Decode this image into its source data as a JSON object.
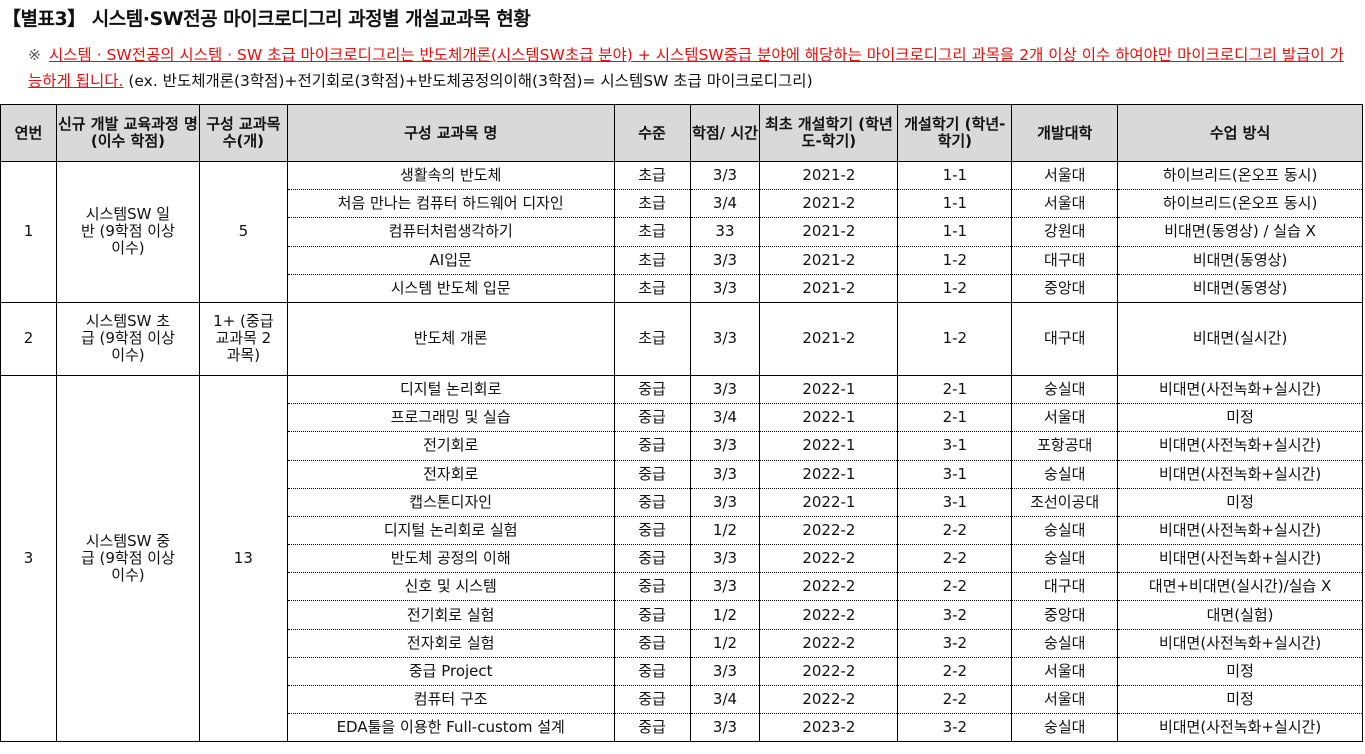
{
  "title": "【별표3】 시스템·SW전공 마이크로디그리 과정별 개설교과목 현황",
  "note": {
    "mark": "※",
    "red": "시스템 · SW전공의 시스템 · SW 초급 마이크로디그리는 반도체개론(시스템SW초급 분야) + 시스템SW중급 분야에 해당하는 마이크로디그리 과목을 2개 이상 이수 하여야만 마이크로디그리 발급이 가능하게 됩니다.",
    "black": " (ex. 반도체개론(3학점)+전기회로(3학점)+반도체공정의이해(3학점)= 시스템SW 초급 마이크로디그리)"
  },
  "headers": [
    "연번",
    "신규 개발 교육과정 명 (이수 학점)",
    "구성 교과목 수(개)",
    "구성 교과목 명",
    "수준",
    "학점/ 시간",
    "최초 개설학기 (학년도-학기)",
    "개설학기 (학년-학기)",
    "개발대학",
    "수업 방식"
  ],
  "groups": [
    {
      "no": "1",
      "name": "시스템SW 일반 (9학점 이상 이수)",
      "count": "5",
      "rows": [
        [
          "생활속의 반도체",
          "초급",
          "3/3",
          "2021-2",
          "1-1",
          "서울대",
          "하이브리드(온오프 동시)"
        ],
        [
          "처음 만나는 컴퓨터 하드웨어 디자인",
          "초급",
          "3/4",
          "2021-2",
          "1-1",
          "서울대",
          "하이브리드(온오프 동시)"
        ],
        [
          "컴퓨터처럼생각하기",
          "초급",
          "33",
          "2021-2",
          "1-1",
          "강원대",
          "비대면(동영상) / 실습 X"
        ],
        [
          "AI입문",
          "초급",
          "3/3",
          "2021-2",
          "1-2",
          "대구대",
          "비대면(동영상)"
        ],
        [
          "시스템 반도체 입문",
          "초급",
          "3/3",
          "2021-2",
          "1-2",
          "중앙대",
          "비대면(동영상)"
        ]
      ]
    },
    {
      "no": "2",
      "name": "시스템SW 초급 (9학점 이상 이수)",
      "count": "1+ (중급교과목 2과목)",
      "rows": [
        [
          "반도체 개론",
          "초급",
          "3/3",
          "2021-2",
          "1-2",
          "대구대",
          "비대면(실시간)"
        ]
      ]
    },
    {
      "no": "3",
      "name": "시스템SW 중급 (9학점 이상 이수)",
      "count": "13",
      "rows": [
        [
          "디지털 논리회로",
          "중급",
          "3/3",
          "2022-1",
          "2-1",
          "숭실대",
          "비대면(사전녹화+실시간)"
        ],
        [
          "프로그래밍 및 실습",
          "중급",
          "3/4",
          "2022-1",
          "2-1",
          "서울대",
          "미정"
        ],
        [
          "전기회로",
          "중급",
          "3/3",
          "2022-1",
          "3-1",
          "포항공대",
          "비대면(사전녹화+실시간)"
        ],
        [
          "전자회로",
          "중급",
          "3/3",
          "2022-1",
          "3-1",
          "숭실대",
          "비대면(사전녹화+실시간)"
        ],
        [
          "캡스톤디자인",
          "중급",
          "3/3",
          "2022-1",
          "3-1",
          "조선이공대",
          "미정"
        ],
        [
          "디지털 논리회로 실험",
          "중급",
          "1/2",
          "2022-2",
          "2-2",
          "숭실대",
          "비대면(사전녹화+실시간)"
        ],
        [
          "반도체 공정의 이해",
          "중급",
          "3/3",
          "2022-2",
          "2-2",
          "숭실대",
          "비대면(사전녹화+실시간)"
        ],
        [
          "신호 및 시스템",
          "중급",
          "3/3",
          "2022-2",
          "2-2",
          "대구대",
          "대면+비대면(실시간)/실습 X"
        ],
        [
          "전기회로 실험",
          "중급",
          "1/2",
          "2022-2",
          "3-2",
          "중앙대",
          "대면(실험)"
        ],
        [
          "전자회로 실험",
          "중급",
          "1/2",
          "2022-2",
          "3-2",
          "숭실대",
          "비대면(사전녹화+실시간)"
        ],
        [
          "중급 Project",
          "중급",
          "3/3",
          "2022-2",
          "2-2",
          "서울대",
          "미정"
        ],
        [
          "컴퓨터 구조",
          "중급",
          "3/4",
          "2022-2",
          "2-2",
          "서울대",
          "미정"
        ],
        [
          "EDA툴을 이용한 Full-custom 설계",
          "중급",
          "3/3",
          "2023-2",
          "3-2",
          "숭실대",
          "비대면(사전녹화+실시간)"
        ]
      ]
    }
  ]
}
